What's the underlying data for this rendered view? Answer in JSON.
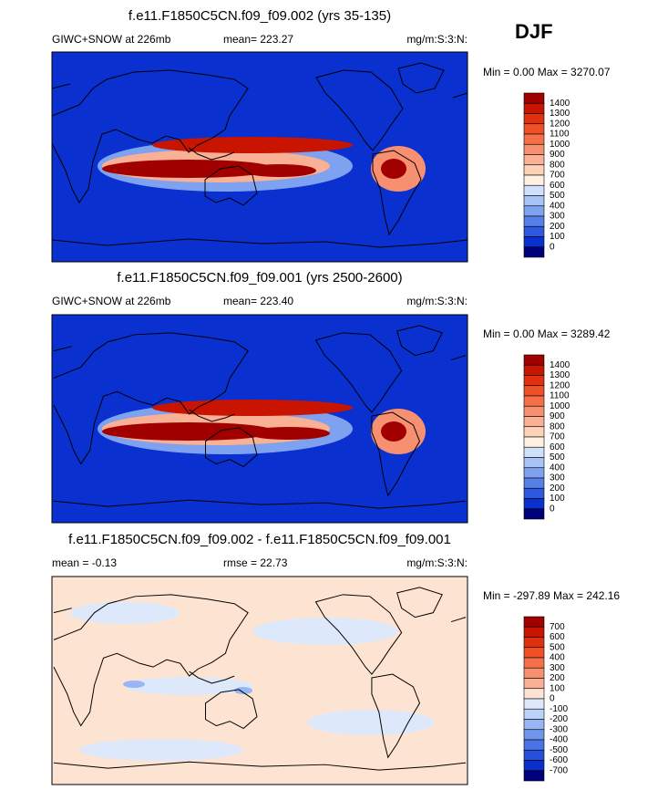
{
  "season": "DJF",
  "panels": [
    {
      "title": "f.e11.F1850C5CN.f09_f09.002 (yrs 35-135)",
      "left_label": "GIWC+SNOW at 226mb",
      "center_label": "mean= 223.27",
      "right_label": "mg/m:S:3:N:",
      "stats": "Min =   0.00 Max = 3270.07",
      "colorbar": {
        "labels": [
          1400,
          1300,
          1200,
          1100,
          1000,
          900,
          800,
          700,
          600,
          500,
          400,
          300,
          200,
          100,
          0
        ],
        "colors": [
          "#a00000",
          "#c81400",
          "#e03010",
          "#f05028",
          "#f47048",
          "#f79070",
          "#f9b094",
          "#fcd2b8",
          "#fff0e2",
          "#cfe0fb",
          "#a8c4f6",
          "#7ea2ef",
          "#5680e8",
          "#2e58e0",
          "#0a30d0",
          "#00007a"
        ]
      }
    },
    {
      "title": "f.e11.F1850C5CN.f09_f09.001 (yrs 2500-2600)",
      "left_label": "GIWC+SNOW at 226mb",
      "center_label": "mean= 223.40",
      "right_label": "mg/m:S:3:N:",
      "stats": "Min =   0.00 Max = 3289.42",
      "colorbar": {
        "labels": [
          1400,
          1300,
          1200,
          1100,
          1000,
          900,
          800,
          700,
          600,
          500,
          400,
          300,
          200,
          100,
          0
        ],
        "colors": [
          "#a00000",
          "#c81400",
          "#e03010",
          "#f05028",
          "#f47048",
          "#f79070",
          "#f9b094",
          "#fcd2b8",
          "#fff0e2",
          "#cfe0fb",
          "#a8c4f6",
          "#7ea2ef",
          "#5680e8",
          "#2e58e0",
          "#0a30d0",
          "#00007a"
        ]
      }
    },
    {
      "title": "f.e11.F1850C5CN.f09_f09.002 - f.e11.F1850C5CN.f09_f09.001",
      "left_label": "mean =  -0.13",
      "center_label": "rmse =  22.73",
      "right_label": "mg/m:S:3:N:",
      "stats": "Min = -297.89 Max = 242.16",
      "colorbar": {
        "labels": [
          700,
          600,
          500,
          400,
          300,
          200,
          100,
          0,
          -100,
          -200,
          -300,
          -400,
          -500,
          -600,
          -700
        ],
        "colors": [
          "#a00000",
          "#c81400",
          "#e03010",
          "#f05028",
          "#f47048",
          "#f79070",
          "#f9b094",
          "#fde4d2",
          "#dde9fb",
          "#bcd2f8",
          "#98b6f3",
          "#7096ec",
          "#4a74e4",
          "#2650dc",
          "#0a2ec8",
          "#00007a"
        ]
      }
    }
  ]
}
